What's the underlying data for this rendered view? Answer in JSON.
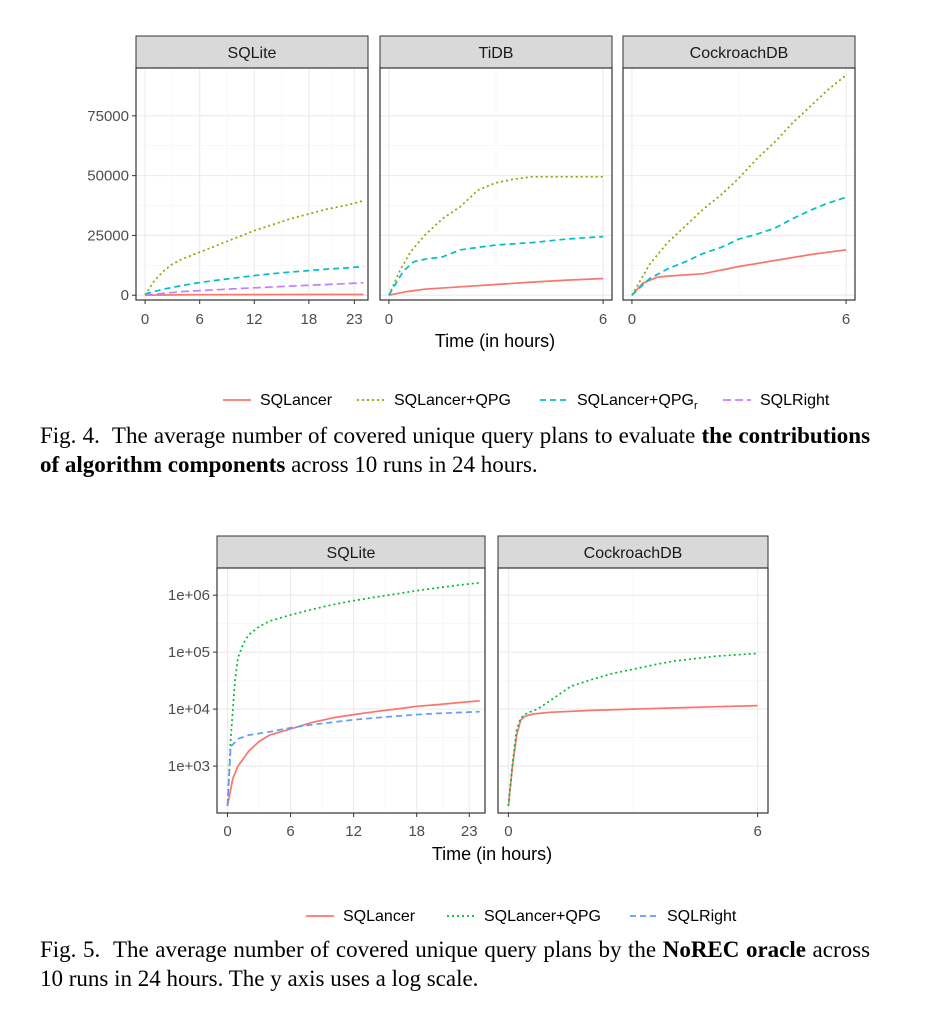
{
  "chart_data": [
    {
      "type": "line",
      "figure_label": "Fig. 4.",
      "caption_before": "The average number of covered unique query plans to evaluate",
      "caption_bold": "the contributions of algorithm components",
      "caption_after": "across 10 runs in 24 hours.",
      "xlabel": "Time (in hours)",
      "ylabel": "",
      "y_scale": "linear",
      "ylim": [
        -2000,
        95000
      ],
      "y_ticks": [
        0,
        25000,
        50000,
        75000
      ],
      "y_tick_labels": [
        "0",
        "25000",
        "50000",
        "75000"
      ],
      "grid": true,
      "legend_position": "bottom",
      "legend": [
        {
          "name": "SQLancer",
          "color": "#F8766D",
          "dash": "solid"
        },
        {
          "name": "SQLancer+QPG",
          "color": "#7CAE00",
          "dash": "dotted"
        },
        {
          "name": "SQLancer+QPG",
          "subscript": "r",
          "color": "#00BFC4",
          "dash": "dashed"
        },
        {
          "name": "SQLRight",
          "color": "#C77CFF",
          "dash": "longdash"
        }
      ],
      "panels": [
        {
          "title": "SQLite",
          "xlim": [
            -1,
            24.5
          ],
          "x_ticks": [
            0,
            6,
            12,
            18,
            23
          ],
          "series": [
            {
              "name": "SQLancer",
              "x": [
                0,
                2,
                6,
                12,
                18,
                24
              ],
              "y": [
                0,
                100,
                200,
                250,
                280,
                300
              ]
            },
            {
              "name": "SQLancer+QPG",
              "x": [
                0,
                1,
                2,
                3,
                4,
                6,
                8,
                10,
                12,
                14,
                16,
                18,
                20,
                22,
                24
              ],
              "y": [
                0,
                6000,
                10000,
                13000,
                15000,
                18000,
                21000,
                24000,
                27000,
                29500,
                32000,
                34000,
                36000,
                37500,
                39500
              ]
            },
            {
              "name": "SQLancer+QPG_r",
              "x": [
                0,
                2,
                4,
                6,
                8,
                10,
                12,
                14,
                16,
                18,
                20,
                22,
                24
              ],
              "y": [
                500,
                2500,
                4000,
                5300,
                6300,
                7300,
                8200,
                9000,
                9700,
                10300,
                10900,
                11400,
                12000
              ]
            },
            {
              "name": "SQLRight",
              "x": [
                0,
                4,
                8,
                12,
                16,
                20,
                24
              ],
              "y": [
                0,
                1500,
                2300,
                3100,
                3800,
                4500,
                5200
              ]
            }
          ]
        },
        {
          "title": "TiDB",
          "xlim": [
            -0.25,
            6.25
          ],
          "x_ticks": [
            0,
            6
          ],
          "series": [
            {
              "name": "SQLancer",
              "x": [
                0,
                0.5,
                1,
                2,
                3,
                4,
                5,
                6
              ],
              "y": [
                0,
                1500,
                2500,
                3500,
                4500,
                5500,
                6300,
                7000
              ]
            },
            {
              "name": "SQLancer+QPG",
              "x": [
                0,
                0.3,
                0.6,
                1,
                1.5,
                2,
                2.5,
                3,
                3.5,
                4,
                4.5,
                5,
                5.5,
                6
              ],
              "y": [
                0,
                10000,
                18000,
                25000,
                32000,
                37000,
                44000,
                47000,
                48500,
                49500,
                49500,
                49500,
                49500,
                49500
              ]
            },
            {
              "name": "SQLancer+QPG_r",
              "x": [
                0,
                0.4,
                0.7,
                1,
                1.5,
                2,
                2.5,
                3,
                4,
                5,
                6
              ],
              "y": [
                0,
                10000,
                14000,
                15000,
                16000,
                19000,
                20000,
                21000,
                22000,
                23500,
                24500
              ]
            }
          ]
        },
        {
          "title": "CockroachDB",
          "xlim": [
            -0.25,
            6.25
          ],
          "x_ticks": [
            0,
            6
          ],
          "series": [
            {
              "name": "SQLancer",
              "x": [
                0,
                0.3,
                0.7,
                1,
                2,
                3,
                4,
                5,
                6
              ],
              "y": [
                0,
                5000,
                7500,
                8000,
                9000,
                12000,
                14500,
                17000,
                19000
              ]
            },
            {
              "name": "SQLancer+QPG",
              "x": [
                0,
                0.5,
                1,
                1.5,
                2,
                2.5,
                3,
                3.5,
                4,
                4.5,
                5,
                5.5,
                6
              ],
              "y": [
                0,
                13000,
                22000,
                29000,
                36000,
                42000,
                49000,
                57000,
                64000,
                72000,
                79000,
                86000,
                92000
              ]
            },
            {
              "name": "SQLancer+QPG_r",
              "x": [
                0,
                0.5,
                1,
                1.5,
                2,
                2.5,
                3,
                3.5,
                4,
                4.5,
                5,
                5.5,
                6
              ],
              "y": [
                0,
                7000,
                11000,
                14000,
                17500,
                20000,
                23500,
                25500,
                28000,
                32000,
                35500,
                38500,
                41000
              ]
            }
          ]
        }
      ]
    },
    {
      "type": "line",
      "figure_label": "Fig. 5.",
      "caption_before": "The average number of covered unique query plans by the",
      "caption_bold": "NoREC oracle",
      "caption_after": "across 10 runs in 24 hours. The y axis uses a log scale.",
      "xlabel": "Time (in hours)",
      "ylabel": "",
      "y_scale": "log",
      "ylim": [
        150,
        3000000
      ],
      "y_ticks": [
        1000,
        10000,
        100000,
        1000000
      ],
      "y_tick_labels": [
        "1e+03",
        "1e+04",
        "1e+05",
        "1e+06"
      ],
      "grid": true,
      "legend_position": "bottom",
      "legend": [
        {
          "name": "SQLancer",
          "color": "#F8766D",
          "dash": "solid"
        },
        {
          "name": "SQLancer+QPG",
          "color": "#00BA38",
          "dash": "dotted"
        },
        {
          "name": "SQLRight",
          "color": "#619CFF",
          "dash": "dashed"
        }
      ],
      "panels": [
        {
          "title": "SQLite",
          "xlim": [
            -1,
            24.5
          ],
          "x_ticks": [
            0,
            6,
            12,
            18,
            23
          ],
          "series": [
            {
              "name": "SQLancer",
              "x": [
                0,
                0.5,
                1,
                2,
                3,
                4,
                6,
                8,
                10,
                12,
                14,
                16,
                18,
                20,
                22,
                24
              ],
              "y": [
                200,
                600,
                1000,
                1800,
                2700,
                3500,
                4500,
                5800,
                7000,
                8000,
                9000,
                10000,
                11200,
                12000,
                13000,
                14000
              ]
            },
            {
              "name": "SQLancer+QPG",
              "x": [
                0,
                0.3,
                0.7,
                1,
                1.5,
                2,
                3,
                4,
                6,
                8,
                10,
                12,
                14,
                16,
                18,
                20,
                22,
                24
              ],
              "y": [
                200,
                3000,
                30000,
                80000,
                140000,
                200000,
                280000,
                350000,
                450000,
                560000,
                680000,
                800000,
                920000,
                1050000,
                1200000,
                1350000,
                1500000,
                1650000
              ]
            },
            {
              "name": "SQLRight",
              "x": [
                0,
                0.3,
                0.7,
                1,
                2,
                4,
                6,
                8,
                10,
                12,
                14,
                16,
                18,
                20,
                22,
                24
              ],
              "y": [
                200,
                2200,
                2600,
                3000,
                3500,
                4000,
                4700,
                5300,
                5900,
                6500,
                7000,
                7500,
                8000,
                8400,
                8700,
                9000
              ]
            }
          ]
        },
        {
          "title": "CockroachDB",
          "xlim": [
            -0.25,
            6.25
          ],
          "x_ticks": [
            0,
            6
          ],
          "series": [
            {
              "name": "SQLancer",
              "x": [
                0,
                0.1,
                0.2,
                0.3,
                0.4,
                0.6,
                1,
                2,
                3,
                4,
                5,
                6
              ],
              "y": [
                200,
                1000,
                3500,
                6500,
                7500,
                8200,
                8800,
                9500,
                10000,
                10500,
                11000,
                11500
              ]
            },
            {
              "name": "SQLancer+QPG",
              "x": [
                0,
                0.1,
                0.2,
                0.3,
                0.45,
                0.7,
                1,
                1.5,
                2,
                2.5,
                3,
                3.5,
                4,
                5,
                6
              ],
              "y": [
                200,
                1100,
                4500,
                7000,
                8500,
                10000,
                14000,
                25000,
                33000,
                42000,
                50000,
                60000,
                70000,
                85000,
                95000
              ]
            }
          ]
        }
      ]
    }
  ]
}
